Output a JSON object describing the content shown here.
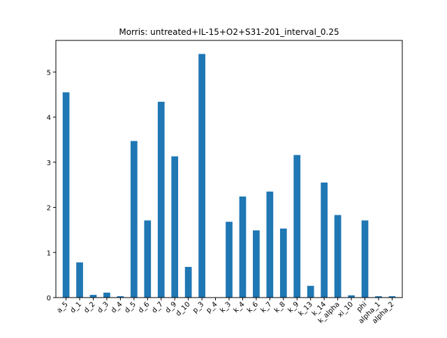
{
  "chart_data": {
    "type": "bar",
    "title": "Morris: untreated+IL-15+O2+S31-201_interval_0.25",
    "xlabel": "",
    "ylabel": "",
    "ylim": [
      0,
      5.7
    ],
    "yticks": [
      0,
      1,
      2,
      3,
      4,
      5
    ],
    "grid": false,
    "bar_color": "#1f77b4",
    "categories": [
      "a_5",
      "d_1",
      "d_2",
      "d_3",
      "d_4",
      "d_5",
      "d_6",
      "d_7",
      "d_9",
      "d_10",
      "p_3",
      "p_4",
      "k_3",
      "k_4",
      "k_6",
      "k_7",
      "k_8",
      "k_9",
      "k_13",
      "k_14",
      "k_alpha",
      "xi_10",
      "phi",
      "alpha_1",
      "alpha_2"
    ],
    "values": [
      4.55,
      0.78,
      0.06,
      0.11,
      0.03,
      3.47,
      1.71,
      4.34,
      3.13,
      0.68,
      5.4,
      0.0,
      1.68,
      2.24,
      1.49,
      2.35,
      1.53,
      3.16,
      0.26,
      2.55,
      1.83,
      0.05,
      1.71,
      0.03,
      0.03
    ]
  }
}
